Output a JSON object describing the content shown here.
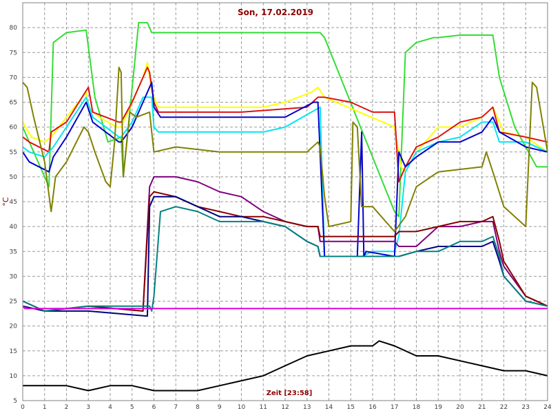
{
  "chart_data": {
    "type": "line",
    "title": "Son, 17.02.2019",
    "xlabel": "Zeit [23:58]",
    "ylabel": "°C",
    "xlim": [
      0,
      24
    ],
    "ylim": [
      5,
      85
    ],
    "xticks": [
      0,
      1,
      2,
      3,
      4,
      5,
      6,
      7,
      8,
      9,
      10,
      11,
      12,
      13,
      14,
      15,
      16,
      17,
      18,
      19,
      20,
      21,
      22,
      23,
      24
    ],
    "yticks": [
      5,
      10,
      15,
      20,
      25,
      30,
      35,
      40,
      45,
      50,
      55,
      60,
      65,
      70,
      75,
      80
    ],
    "grid": true,
    "series": [
      {
        "color": "#33dd33",
        "x": [
          0,
          1.2,
          1.4,
          2,
          2.9,
          3.3,
          3.9,
          4.5,
          4.6,
          5.3,
          5.7,
          5.9,
          6,
          7,
          8,
          13.6,
          13.8,
          17,
          17.2,
          17.5,
          18,
          18.8,
          19,
          20,
          21.5,
          21.8,
          22.5,
          23.5,
          24
        ],
        "y": [
          60,
          48,
          77,
          79,
          79.5,
          66,
          57,
          58,
          50,
          81,
          81,
          79,
          79,
          79,
          79,
          79,
          78,
          43,
          42,
          75,
          77,
          78,
          78,
          78.5,
          78.5,
          70,
          60,
          52,
          52
        ]
      },
      {
        "color": "#ffff00",
        "x": [
          0,
          0.4,
          1.0,
          1.3,
          2,
          2.9,
          3.0,
          3.5,
          4.3,
          4.5,
          5.0,
          5.5,
          5.7,
          5.9,
          6.2,
          7,
          9,
          11,
          12,
          13.2,
          13.5,
          13.8,
          17,
          17.3,
          17.5,
          18,
          19,
          20,
          21,
          21.5,
          22,
          23,
          24
        ],
        "y": [
          61,
          58,
          57,
          58,
          62,
          67,
          64,
          62,
          60,
          60,
          65,
          70,
          73,
          67,
          64,
          64,
          64,
          64,
          65,
          67,
          68,
          66,
          60,
          52,
          51,
          55,
          60,
          60,
          62,
          64,
          59,
          58,
          55
        ]
      },
      {
        "color": "#dd1111",
        "x": [
          0,
          0.3,
          1.2,
          1.3,
          2,
          3.0,
          3.2,
          4.4,
          4.5,
          5.0,
          5.7,
          5.8,
          6.0,
          6.2,
          7,
          10,
          13,
          13.5,
          13.8,
          15,
          16,
          17,
          17.2,
          17.5,
          18,
          19,
          20,
          21,
          21.5,
          21.8,
          23,
          24
        ],
        "y": [
          58,
          57,
          55,
          59,
          61,
          68,
          63,
          61,
          61,
          65,
          72,
          71,
          65,
          63,
          63,
          63,
          64,
          66,
          66,
          65,
          63,
          63,
          49,
          52,
          56,
          58,
          61,
          62,
          64,
          59,
          58,
          57
        ]
      },
      {
        "color": "#00e5ee",
        "x": [
          0,
          0.3,
          1.0,
          1.4,
          2,
          2.9,
          3.2,
          4.4,
          4.5,
          5.0,
          5.5,
          5.9,
          6.0,
          6.2,
          7,
          9,
          11,
          12,
          13.2,
          13.6,
          13.8,
          15.5,
          16,
          17,
          17.2,
          17.5,
          18,
          19,
          20,
          21,
          21.5,
          21.8,
          23,
          24
        ],
        "y": [
          56,
          55,
          54,
          56,
          60,
          66,
          62,
          58,
          58,
          61,
          66,
          66,
          60,
          59,
          59,
          59,
          59,
          60,
          63,
          64,
          34,
          34,
          35,
          35,
          38,
          51,
          55,
          57,
          58,
          61,
          61,
          57,
          57,
          55
        ]
      },
      {
        "color": "#0000cc",
        "x": [
          0,
          0.3,
          1.2,
          1.4,
          2,
          2.9,
          3.2,
          4.4,
          4.5,
          5.0,
          5.5,
          5.9,
          6.0,
          6.3,
          7,
          9,
          11,
          12,
          13.3,
          13.5,
          13.8,
          15.3,
          15.5,
          15.6,
          15.7,
          17,
          17.2,
          17.5,
          18,
          19,
          20,
          21,
          21.5,
          21.8,
          23,
          24
        ],
        "y": [
          55,
          53,
          51,
          54,
          58,
          65,
          61,
          57,
          57,
          60,
          65,
          69,
          64,
          62,
          62,
          62,
          62,
          62,
          65,
          65,
          34,
          34,
          59,
          34,
          35,
          34,
          55,
          52,
          54,
          57,
          57,
          59,
          62,
          59,
          56,
          55
        ]
      },
      {
        "color": "#808000",
        "x": [
          0,
          0.2,
          0.5,
          1.0,
          1.3,
          1.5,
          2,
          2.8,
          3.0,
          3.3,
          3.8,
          4.0,
          4.2,
          4.4,
          4.5,
          4.6,
          4.9,
          5.2,
          5.8,
          5.9,
          6.0,
          7,
          9,
          11,
          13,
          13.5,
          13.6,
          13.8,
          14,
          15,
          15.1,
          15.3,
          15.5,
          16,
          17,
          17.5,
          18,
          19,
          21,
          21.2,
          21.5,
          22,
          23,
          23.3,
          23.5,
          24
        ],
        "y": [
          69,
          68,
          62,
          53,
          43,
          50,
          53,
          60,
          59,
          55,
          49,
          48,
          57,
          72,
          71,
          50,
          63,
          62,
          63,
          59,
          55,
          56,
          55,
          55,
          55,
          57,
          56,
          46,
          40,
          41,
          61,
          60,
          44,
          44,
          39,
          42,
          48,
          51,
          52,
          55,
          51,
          44,
          40,
          69,
          68,
          55
        ]
      },
      {
        "color": "#800080",
        "x": [
          0,
          1,
          3,
          5.5,
          5.8,
          6.0,
          7,
          8,
          9,
          10,
          11,
          12,
          13,
          13.5,
          13.6,
          17,
          17.2,
          18,
          19,
          20,
          21,
          21.5,
          21.8,
          22,
          23,
          24
        ],
        "y": [
          25,
          23,
          24,
          23,
          48,
          50,
          50,
          49,
          47,
          46,
          43,
          41,
          40,
          40,
          37,
          37,
          36,
          36,
          40,
          40,
          41,
          41,
          35,
          32,
          26,
          24
        ]
      },
      {
        "color": "#880000",
        "x": [
          0,
          1,
          3,
          5.5,
          5.8,
          6.0,
          7,
          8,
          9,
          10,
          11,
          12,
          13,
          13.5,
          13.6,
          17,
          17.2,
          18,
          19,
          20,
          21,
          21.5,
          21.8,
          22,
          23,
          24
        ],
        "y": [
          25,
          23,
          24,
          23,
          46,
          47,
          46,
          44,
          43,
          42,
          42,
          41,
          40,
          40,
          38,
          38,
          39,
          39,
          40,
          41,
          41,
          42,
          37,
          33,
          26,
          24
        ]
      },
      {
        "color": "#000080",
        "x": [
          0,
          1,
          3,
          5.7,
          5.8,
          6.0,
          7,
          8,
          9,
          10,
          11,
          12,
          13,
          13.5,
          13.6,
          17,
          17.2,
          18,
          19,
          20,
          21,
          21.5,
          21.8,
          22,
          23,
          24
        ],
        "y": [
          24,
          23,
          23,
          22,
          44,
          46,
          46,
          44,
          42,
          42,
          41,
          40,
          37,
          36,
          34,
          34,
          34,
          35,
          36,
          36,
          36,
          37,
          33,
          30,
          25,
          24
        ]
      },
      {
        "color": "#008080",
        "x": [
          0,
          1,
          3,
          5.8,
          5.9,
          6.0,
          6.3,
          7,
          8,
          9,
          10,
          11,
          12,
          13,
          13.5,
          13.6,
          17,
          17.2,
          18,
          19,
          20,
          21,
          21.5,
          21.8,
          22,
          23,
          24
        ],
        "y": [
          25,
          23,
          24,
          24,
          23,
          26,
          43,
          44,
          43,
          41,
          41,
          41,
          40,
          37,
          36,
          34,
          34,
          34,
          35,
          35,
          37,
          37,
          38,
          34,
          30,
          25,
          24
        ]
      },
      {
        "color": "#dd00dd",
        "x": [
          0,
          0.1,
          24
        ],
        "y": [
          24,
          23.5,
          23.5
        ]
      },
      {
        "color": "#000000",
        "x": [
          0,
          2,
          3,
          4,
          5,
          6,
          7,
          8,
          9,
          10,
          11,
          12,
          13,
          14,
          15,
          16,
          16.3,
          17,
          18,
          19,
          20,
          21,
          22,
          23,
          24
        ],
        "y": [
          8,
          8,
          7,
          8,
          8,
          7,
          7,
          7,
          8,
          9,
          10,
          12,
          14,
          15,
          16,
          16,
          17,
          16,
          14,
          14,
          13,
          12,
          11,
          11,
          10
        ]
      }
    ]
  }
}
